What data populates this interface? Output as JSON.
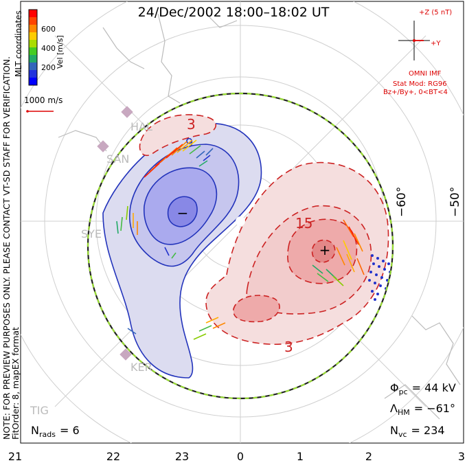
{
  "title": "24/Dec/2002  18:00–18:02  UT",
  "side_note_1": "NOTE: FOR PREVIEW PURPOSES ONLY. PLEASE CONTACT VT-SD STAFF FOR VERIFICATION.",
  "side_note_2": "FitOrder: 8, mapEX format",
  "colorbar": {
    "label": "Vel [m/s]",
    "coords": "MLT coordinates",
    "ticks": [
      "600",
      "400",
      "200"
    ],
    "colors": [
      "#ff0000",
      "#ff4400",
      "#ff8800",
      "#ffcc00",
      "#aadd00",
      "#44cc22",
      "#22aa66",
      "#3366bb",
      "#2233dd",
      "#0000ff"
    ]
  },
  "ref_vector": {
    "label": "1000 m/s",
    "color": "#dd0000"
  },
  "imf": {
    "plus_z": "+Z (5 nT)",
    "plus_y": "+Y",
    "source": "OMNI IMF",
    "model": "Stat Mod: RG96",
    "condition": "Bz+/By+, 0<BT<4",
    "color": "#dd0000"
  },
  "lat_labels": [
    "−60°",
    "−50°"
  ],
  "stations": [
    "HAL",
    "SAN",
    "SYE",
    "KER",
    "TIG"
  ],
  "contour_labels": {
    "neg_3": "3",
    "neg_9": "9",
    "pos_15": "15",
    "pos_3": "3"
  },
  "cells": {
    "min_symbol": "−",
    "max_symbol": "+"
  },
  "stats": {
    "phi_pc_label": "Φ",
    "phi_pc_sub": "pc",
    "phi_pc_value": "= 44  kV",
    "lambda_label": "Λ",
    "lambda_sub": "HM",
    "lambda_value": "= −61°",
    "nvc_label": "N",
    "nvc_sub": "vc",
    "nvc_value": "= 234",
    "nrads_label": "N",
    "nrads_sub": "rads",
    "nrads_value": "= 6"
  },
  "mlt_axis": [
    "21",
    "22",
    "23",
    "0",
    "1",
    "2",
    "3"
  ],
  "colors": {
    "negative": "#1a1acc",
    "positive": "#cc1111",
    "hmb_dash_a": "#222222",
    "hmb_dash_b": "#99dd33",
    "grid": "#cccccc",
    "coast": "#bbbbbb"
  }
}
